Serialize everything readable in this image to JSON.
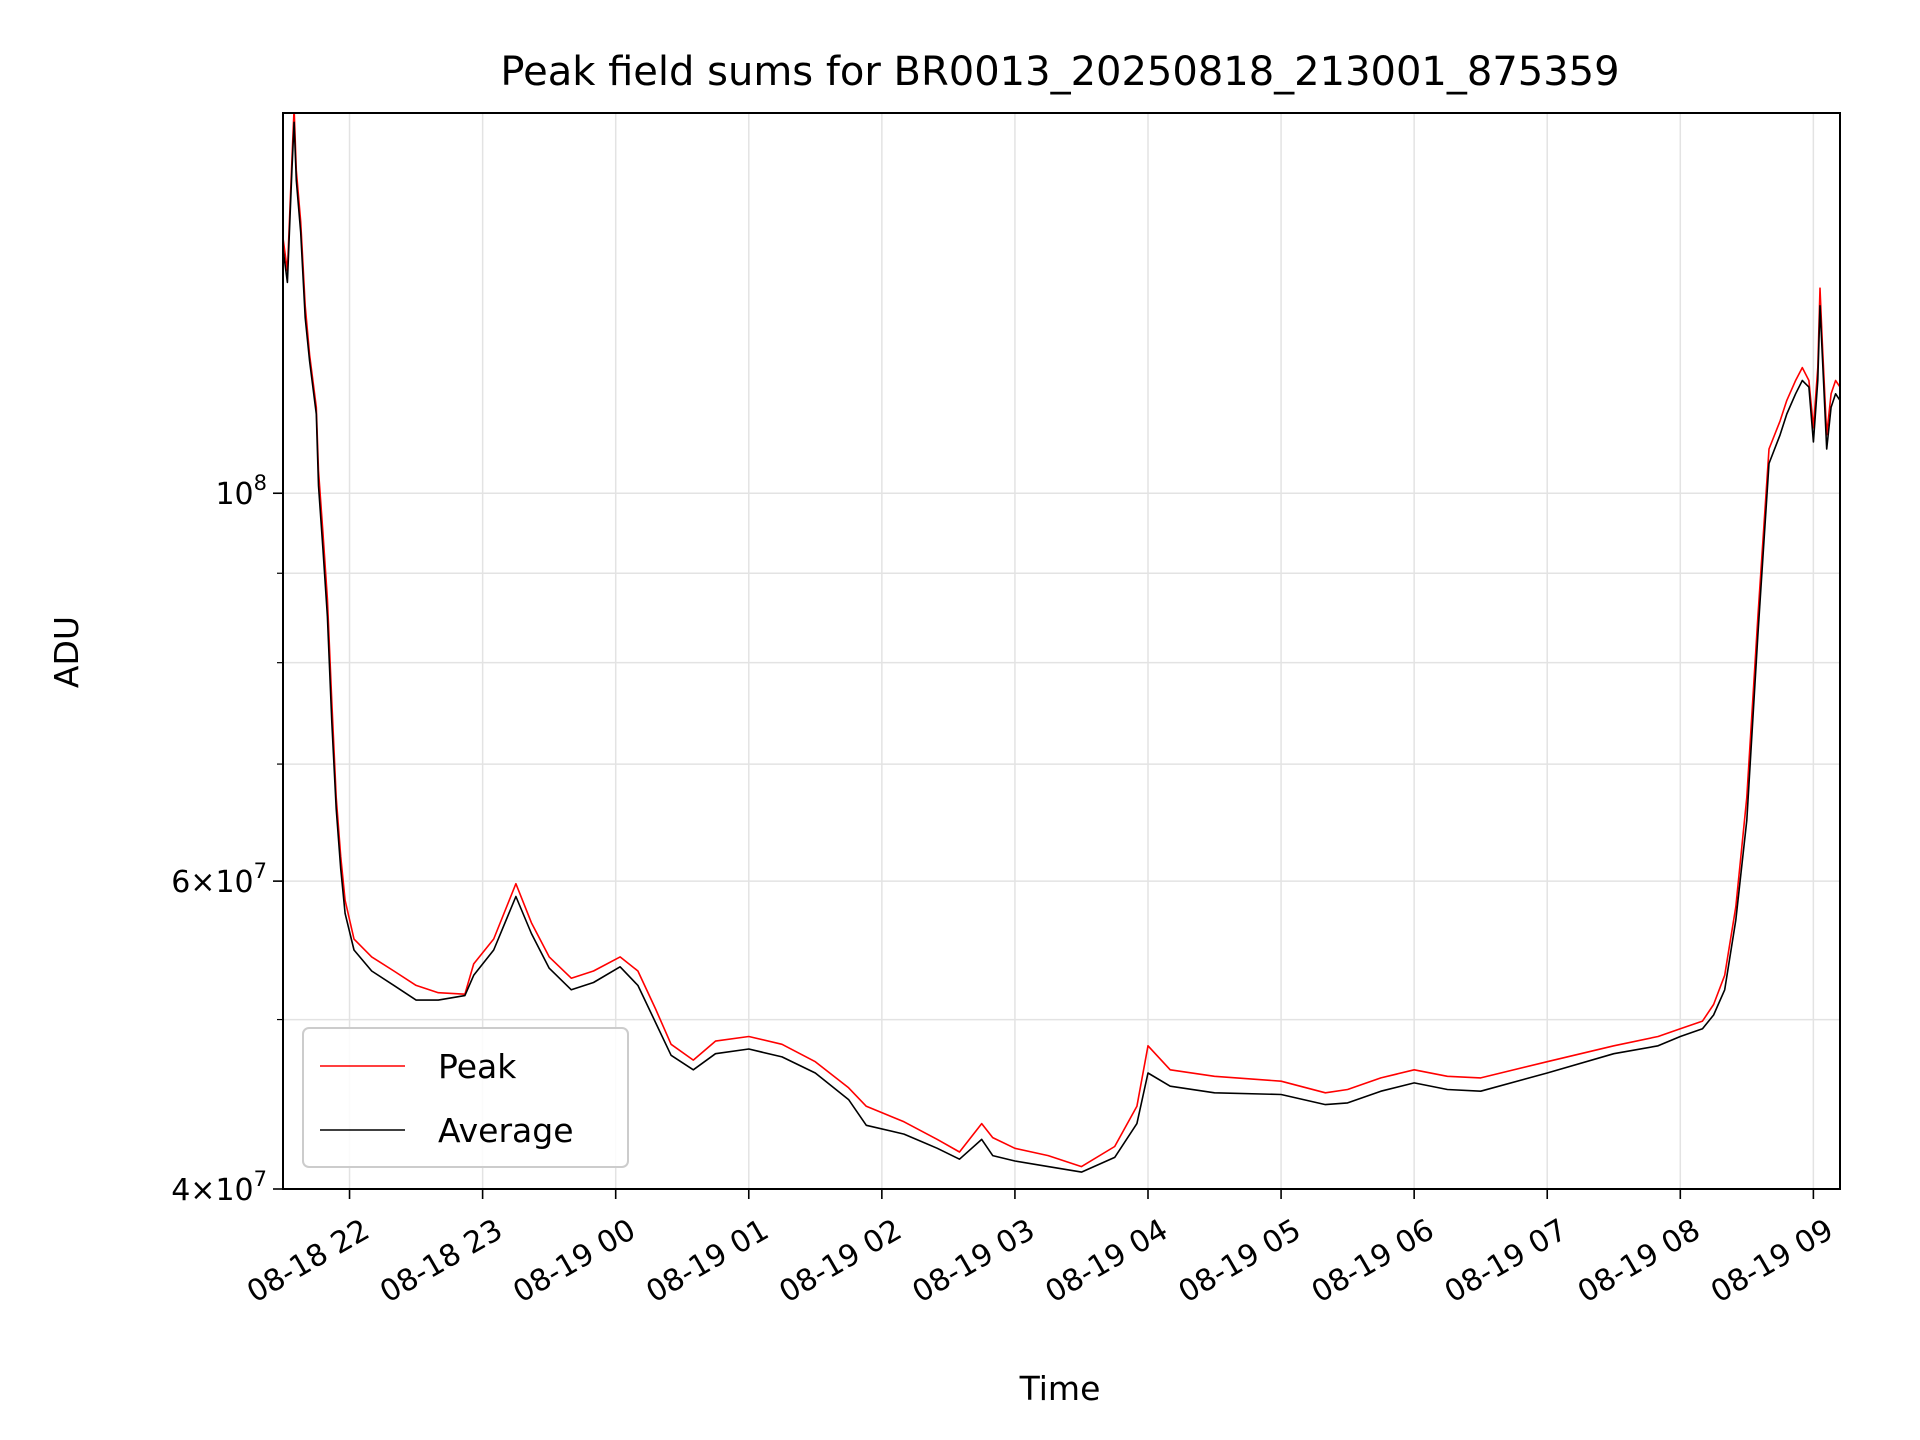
{
  "chart_data": {
    "type": "line",
    "title": "Peak field sums for BR0013_20250818_213001_875359",
    "xlabel": "Time",
    "ylabel": "ADU",
    "yscale": "log",
    "ylim": [
      40000000,
      165000000
    ],
    "xlim": [
      "2025-08-18 21:30",
      "2025-08-19 09:12"
    ],
    "x_ticks": [
      {
        "value": "2025-08-18 22:00",
        "label": "08-18 22"
      },
      {
        "value": "2025-08-18 23:00",
        "label": "08-18 23"
      },
      {
        "value": "2025-08-19 00:00",
        "label": "08-19 00"
      },
      {
        "value": "2025-08-19 01:00",
        "label": "08-19 01"
      },
      {
        "value": "2025-08-19 02:00",
        "label": "08-19 02"
      },
      {
        "value": "2025-08-19 03:00",
        "label": "08-19 03"
      },
      {
        "value": "2025-08-19 04:00",
        "label": "08-19 04"
      },
      {
        "value": "2025-08-19 05:00",
        "label": "08-19 05"
      },
      {
        "value": "2025-08-19 06:00",
        "label": "08-19 06"
      },
      {
        "value": "2025-08-19 07:00",
        "label": "08-19 07"
      },
      {
        "value": "2025-08-19 08:00",
        "label": "08-19 08"
      },
      {
        "value": "2025-08-19 09:00",
        "label": "08-19 09"
      }
    ],
    "y_major_ticks": [
      {
        "value": 40000000,
        "mantissa": "4",
        "exponent": "7"
      },
      {
        "value": 60000000,
        "mantissa": "6",
        "exponent": "7"
      },
      {
        "value": 100000000,
        "mantissa": "",
        "exponent": "8"
      }
    ],
    "y_minor_ticks": [
      50000000,
      70000000,
      80000000,
      90000000
    ],
    "grid": true,
    "legend_position": "lower-left",
    "series": [
      {
        "name": "Peak",
        "color": "#ff0000",
        "x": [
          "2025-08-18 21:30",
          "2025-08-18 21:32",
          "2025-08-18 21:34",
          "2025-08-18 21:35",
          "2025-08-18 21:36",
          "2025-08-18 21:38",
          "2025-08-18 21:40",
          "2025-08-18 21:42",
          "2025-08-18 21:45",
          "2025-08-18 21:46",
          "2025-08-18 21:48",
          "2025-08-18 21:50",
          "2025-08-18 21:52",
          "2025-08-18 21:54",
          "2025-08-18 21:56",
          "2025-08-18 21:58",
          "2025-08-18 22:02",
          "2025-08-18 22:10",
          "2025-08-18 22:20",
          "2025-08-18 22:30",
          "2025-08-18 22:40",
          "2025-08-18 22:52",
          "2025-08-18 22:56",
          "2025-08-18 23:05",
          "2025-08-18 23:15",
          "2025-08-18 23:22",
          "2025-08-18 23:30",
          "2025-08-18 23:40",
          "2025-08-18 23:50",
          "2025-08-19 00:02",
          "2025-08-19 00:10",
          "2025-08-19 00:18",
          "2025-08-19 00:25",
          "2025-08-19 00:35",
          "2025-08-19 00:45",
          "2025-08-19 01:00",
          "2025-08-19 01:15",
          "2025-08-19 01:30",
          "2025-08-19 01:45",
          "2025-08-19 01:53",
          "2025-08-19 02:10",
          "2025-08-19 02:25",
          "2025-08-19 02:35",
          "2025-08-19 02:45",
          "2025-08-19 02:50",
          "2025-08-19 03:00",
          "2025-08-19 03:15",
          "2025-08-19 03:30",
          "2025-08-19 03:45",
          "2025-08-19 03:55",
          "2025-08-19 04:00",
          "2025-08-19 04:10",
          "2025-08-19 04:30",
          "2025-08-19 05:00",
          "2025-08-19 05:20",
          "2025-08-19 05:30",
          "2025-08-19 05:45",
          "2025-08-19 06:00",
          "2025-08-19 06:15",
          "2025-08-19 06:30",
          "2025-08-19 07:00",
          "2025-08-19 07:30",
          "2025-08-19 07:50",
          "2025-08-19 08:00",
          "2025-08-19 08:10",
          "2025-08-19 08:15",
          "2025-08-19 08:20",
          "2025-08-19 08:25",
          "2025-08-19 08:30",
          "2025-08-19 08:35",
          "2025-08-19 08:40",
          "2025-08-19 08:45",
          "2025-08-19 08:48",
          "2025-08-19 08:52",
          "2025-08-19 08:55",
          "2025-08-19 08:58",
          "2025-08-19 09:00",
          "2025-08-19 09:02",
          "2025-08-19 09:03",
          "2025-08-19 09:04",
          "2025-08-19 09:06",
          "2025-08-19 09:08",
          "2025-08-19 09:10",
          "2025-08-19 09:12"
        ],
        "y": [
          140000000,
          134000000,
          155000000,
          166000000,
          153000000,
          143000000,
          128000000,
          120000000,
          112000000,
          103000000,
          95000000,
          87000000,
          76000000,
          67000000,
          62000000,
          58500000,
          55600000,
          54300000,
          53300000,
          52300000,
          51800000,
          51700000,
          53800000,
          55600000,
          59800000,
          56800000,
          54300000,
          52800000,
          53300000,
          54300000,
          53300000,
          50700000,
          48400000,
          47400000,
          48600000,
          48900000,
          48400000,
          47300000,
          45700000,
          44600000,
          43700000,
          42700000,
          42000000,
          43600000,
          42800000,
          42200000,
          41800000,
          41200000,
          42300000,
          44600000,
          48300000,
          46800000,
          46400000,
          46100000,
          45400000,
          45600000,
          46300000,
          46800000,
          46400000,
          46300000,
          47300000,
          48300000,
          48900000,
          49400000,
          49900000,
          51000000,
          53000000,
          58000000,
          67000000,
          85000000,
          106000000,
          110000000,
          113000000,
          116000000,
          118000000,
          116000000,
          109000000,
          118000000,
          131000000,
          122000000,
          108000000,
          114000000,
          116000000,
          115000000
        ]
      },
      {
        "name": "Average",
        "color": "#000000",
        "x": [
          "2025-08-18 21:30",
          "2025-08-18 21:32",
          "2025-08-18 21:34",
          "2025-08-18 21:35",
          "2025-08-18 21:36",
          "2025-08-18 21:38",
          "2025-08-18 21:40",
          "2025-08-18 21:42",
          "2025-08-18 21:45",
          "2025-08-18 21:46",
          "2025-08-18 21:48",
          "2025-08-18 21:50",
          "2025-08-18 21:52",
          "2025-08-18 21:54",
          "2025-08-18 21:56",
          "2025-08-18 21:58",
          "2025-08-18 22:02",
          "2025-08-18 22:10",
          "2025-08-18 22:20",
          "2025-08-18 22:30",
          "2025-08-18 22:40",
          "2025-08-18 22:52",
          "2025-08-18 22:56",
          "2025-08-18 23:05",
          "2025-08-18 23:15",
          "2025-08-18 23:22",
          "2025-08-18 23:30",
          "2025-08-18 23:40",
          "2025-08-18 23:50",
          "2025-08-19 00:02",
          "2025-08-19 00:10",
          "2025-08-19 00:18",
          "2025-08-19 00:25",
          "2025-08-19 00:35",
          "2025-08-19 00:45",
          "2025-08-19 01:00",
          "2025-08-19 01:15",
          "2025-08-19 01:30",
          "2025-08-19 01:45",
          "2025-08-19 01:53",
          "2025-08-19 02:10",
          "2025-08-19 02:25",
          "2025-08-19 02:35",
          "2025-08-19 02:45",
          "2025-08-19 02:50",
          "2025-08-19 03:00",
          "2025-08-19 03:15",
          "2025-08-19 03:30",
          "2025-08-19 03:45",
          "2025-08-19 03:55",
          "2025-08-19 04:00",
          "2025-08-19 04:10",
          "2025-08-19 04:30",
          "2025-08-19 05:00",
          "2025-08-19 05:20",
          "2025-08-19 05:30",
          "2025-08-19 05:45",
          "2025-08-19 06:00",
          "2025-08-19 06:15",
          "2025-08-19 06:30",
          "2025-08-19 07:00",
          "2025-08-19 07:30",
          "2025-08-19 07:50",
          "2025-08-19 08:00",
          "2025-08-19 08:10",
          "2025-08-19 08:15",
          "2025-08-19 08:20",
          "2025-08-19 08:25",
          "2025-08-19 08:30",
          "2025-08-19 08:35",
          "2025-08-19 08:40",
          "2025-08-19 08:45",
          "2025-08-19 08:48",
          "2025-08-19 08:52",
          "2025-08-19 08:55",
          "2025-08-19 08:58",
          "2025-08-19 09:00",
          "2025-08-19 09:02",
          "2025-08-19 09:03",
          "2025-08-19 09:04",
          "2025-08-19 09:06",
          "2025-08-19 09:08",
          "2025-08-19 09:10",
          "2025-08-19 09:12"
        ],
        "y": [
          138000000,
          132000000,
          153000000,
          163000000,
          151000000,
          141000000,
          126000000,
          119000000,
          111000000,
          101000000,
          93000000,
          85000000,
          74000000,
          66000000,
          61000000,
          57500000,
          54800000,
          53300000,
          52300000,
          51300000,
          51300000,
          51600000,
          53000000,
          54800000,
          58800000,
          56000000,
          53500000,
          52000000,
          52500000,
          53600000,
          52300000,
          49800000,
          47700000,
          46800000,
          47800000,
          48100000,
          47600000,
          46600000,
          45000000,
          43500000,
          43000000,
          42200000,
          41600000,
          42700000,
          41800000,
          41500000,
          41200000,
          40900000,
          41700000,
          43600000,
          46600000,
          45800000,
          45400000,
          45300000,
          44700000,
          44800000,
          45500000,
          46000000,
          45600000,
          45500000,
          46600000,
          47800000,
          48300000,
          48900000,
          49400000,
          50300000,
          52000000,
          57000000,
          65000000,
          83000000,
          104000000,
          108000000,
          111000000,
          114000000,
          116000000,
          115000000,
          107000000,
          116000000,
          128000000,
          120000000,
          106000000,
          112000000,
          114000000,
          113000000
        ]
      }
    ]
  }
}
